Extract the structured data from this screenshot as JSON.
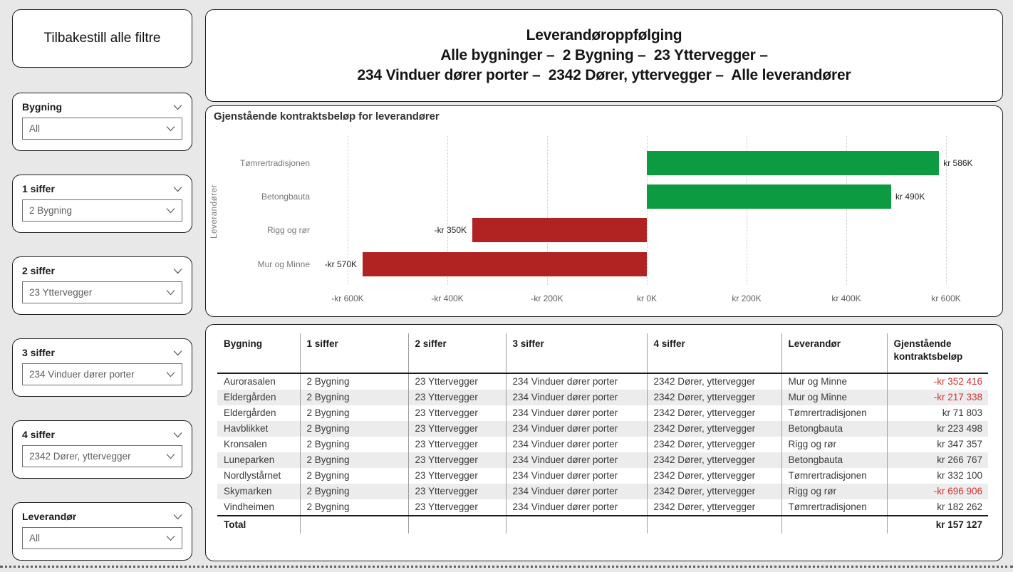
{
  "colors": {
    "background": "#e8e8e8",
    "card_border": "#202020",
    "positive_bar": "#0c9b41",
    "negative_bar": "#b12323",
    "negative_text": "#d03330"
  },
  "sidebar": {
    "reset_button_label": "Tilbakestill alle filtre",
    "slicers": [
      {
        "label": "Bygning",
        "value": "All"
      },
      {
        "label": "1 siffer",
        "value": "2 Bygning"
      },
      {
        "label": "2 siffer",
        "value": "23 Yttervegger"
      },
      {
        "label": "3 siffer",
        "value": "234 Vinduer dører porter"
      },
      {
        "label": "4 siffer",
        "value": "2342 Dører, yttervegger"
      },
      {
        "label": "Leverandør",
        "value": "All"
      }
    ]
  },
  "header": {
    "line1": "Leverandøroppfølging",
    "line2": "Alle bygninger –  2 Bygning –  23 Yttervegger –",
    "line3": "234 Vinduer dører porter –  2342 Dører, yttervegger –  Alle leverandører"
  },
  "chart_data": {
    "type": "bar",
    "orientation": "horizontal",
    "title": "Gjenstående kontraktsbeløp for leverandører",
    "ylabel": "Leverandører",
    "xlabel": "",
    "categories": [
      "Tømrertradisjonen",
      "Betongbauta",
      "Rigg og rør",
      "Mur og Minne"
    ],
    "values": [
      586000,
      490000,
      -350000,
      -570000
    ],
    "data_labels": [
      "kr 586K",
      "kr 490K",
      "-kr 350K",
      "-kr 570K"
    ],
    "x_tick_values": [
      -600000,
      -400000,
      -200000,
      0,
      200000,
      400000,
      600000
    ],
    "x_tick_labels": [
      "-kr 600K",
      "-kr 400K",
      "-kr 200K",
      "kr 0K",
      "kr 200K",
      "kr 400K",
      "kr 600K"
    ],
    "xlim": [
      -660000,
      690000
    ],
    "grid": "dotted-vertical",
    "legend": "none",
    "positive_color": "#0c9b41",
    "negative_color": "#b12323"
  },
  "table": {
    "columns": [
      "Bygning",
      "1 siffer",
      "2 siffer",
      "3 siffer",
      "4 siffer",
      "Leverandør",
      "Gjenstående kontraktsbeløp"
    ],
    "rows": [
      [
        "Aurorasalen",
        "2 Bygning",
        "23 Yttervegger",
        "234 Vinduer dører porter",
        "2342 Dører, yttervegger",
        "Mur og Minne",
        "-kr 352 416"
      ],
      [
        "Eldergården",
        "2 Bygning",
        "23 Yttervegger",
        "234 Vinduer dører porter",
        "2342 Dører, yttervegger",
        "Mur og Minne",
        "-kr 217 338"
      ],
      [
        "Eldergården",
        "2 Bygning",
        "23 Yttervegger",
        "234 Vinduer dører porter",
        "2342 Dører, yttervegger",
        "Tømrertradisjonen",
        "kr 71 803"
      ],
      [
        "Havblikket",
        "2 Bygning",
        "23 Yttervegger",
        "234 Vinduer dører porter",
        "2342 Dører, yttervegger",
        "Betongbauta",
        "kr 223 498"
      ],
      [
        "Kronsalen",
        "2 Bygning",
        "23 Yttervegger",
        "234 Vinduer dører porter",
        "2342 Dører, yttervegger",
        "Rigg og rør",
        "kr 347 357"
      ],
      [
        "Luneparken",
        "2 Bygning",
        "23 Yttervegger",
        "234 Vinduer dører porter",
        "2342 Dører, yttervegger",
        "Betongbauta",
        "kr 266 767"
      ],
      [
        "Nordlystårnet",
        "2 Bygning",
        "23 Yttervegger",
        "234 Vinduer dører porter",
        "2342 Dører, yttervegger",
        "Tømrertradisjonen",
        "kr 332 100"
      ],
      [
        "Skymarken",
        "2 Bygning",
        "23 Yttervegger",
        "234 Vinduer dører porter",
        "2342 Dører, yttervegger",
        "Rigg og rør",
        "-kr 696 906"
      ],
      [
        "Vindheimen",
        "2 Bygning",
        "23 Yttervegger",
        "234 Vinduer dører porter",
        "2342 Dører, yttervegger",
        "Tømrertradisjonen",
        "kr 182 262"
      ]
    ],
    "total": {
      "label": "Total",
      "value": "kr 157 127"
    }
  }
}
